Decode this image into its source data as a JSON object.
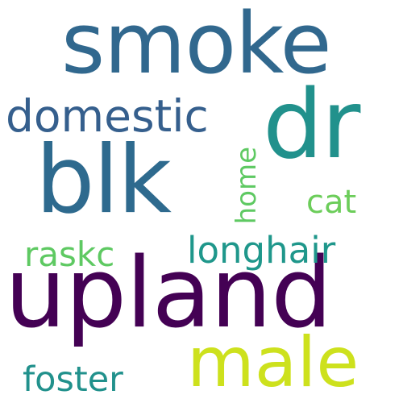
{
  "words": {
    "upland": {
      "text": "upland",
      "color": "#440154"
    },
    "smoke": {
      "text": "smoke",
      "color": "#31688e"
    },
    "blk": {
      "text": "blk",
      "color": "#2e6a8e"
    },
    "dr": {
      "text": "dr",
      "color": "#21918c"
    },
    "male": {
      "text": "male",
      "color": "#cde11d"
    },
    "domestic": {
      "text": "domestic",
      "color": "#355f8d"
    },
    "longhair": {
      "text": "longhair",
      "color": "#1f978b"
    },
    "foster": {
      "text": "foster",
      "color": "#21918c"
    },
    "raskc": {
      "text": "raskc",
      "color": "#5ec962"
    },
    "cat": {
      "text": "cat",
      "color": "#6ccd5a"
    },
    "home": {
      "text": "home",
      "color": "#5ec962"
    }
  }
}
